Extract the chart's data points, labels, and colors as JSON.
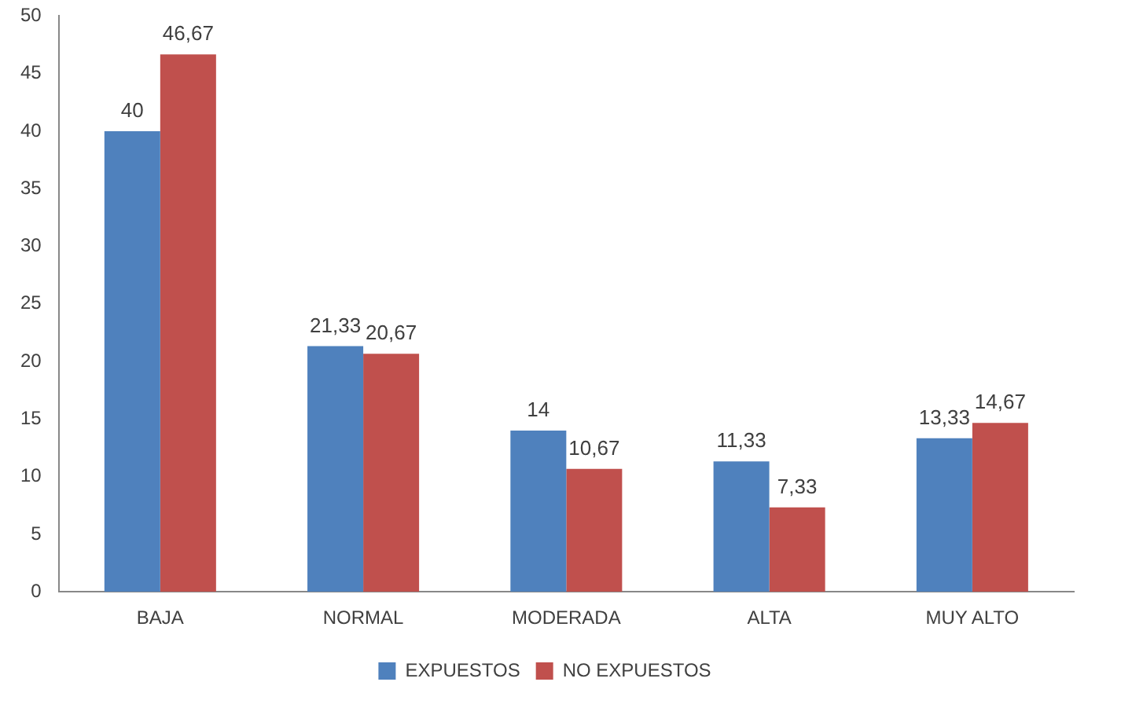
{
  "chart_data": {
    "type": "bar",
    "categories": [
      "BAJA",
      "NORMAL",
      "MODERADA",
      "ALTA",
      "MUY ALTO"
    ],
    "series": [
      {
        "name": "EXPUESTOS",
        "color": "#4f81bd",
        "values": [
          40,
          21.33,
          14,
          11.33,
          13.33
        ],
        "value_labels": [
          "40",
          "21,33",
          "14",
          "11,33",
          "13,33"
        ]
      },
      {
        "name": "NO EXPUESTOS",
        "color": "#c0504d",
        "values": [
          46.67,
          20.67,
          10.67,
          7.33,
          14.67
        ],
        "value_labels": [
          "46,67",
          "20,67",
          "10,67",
          "7,33",
          "14,67"
        ]
      }
    ],
    "ylim": [
      0,
      50
    ],
    "yticks": [
      0,
      5,
      10,
      15,
      20,
      25,
      30,
      35,
      40,
      45,
      50
    ],
    "grid": false,
    "legend": "bottom"
  }
}
